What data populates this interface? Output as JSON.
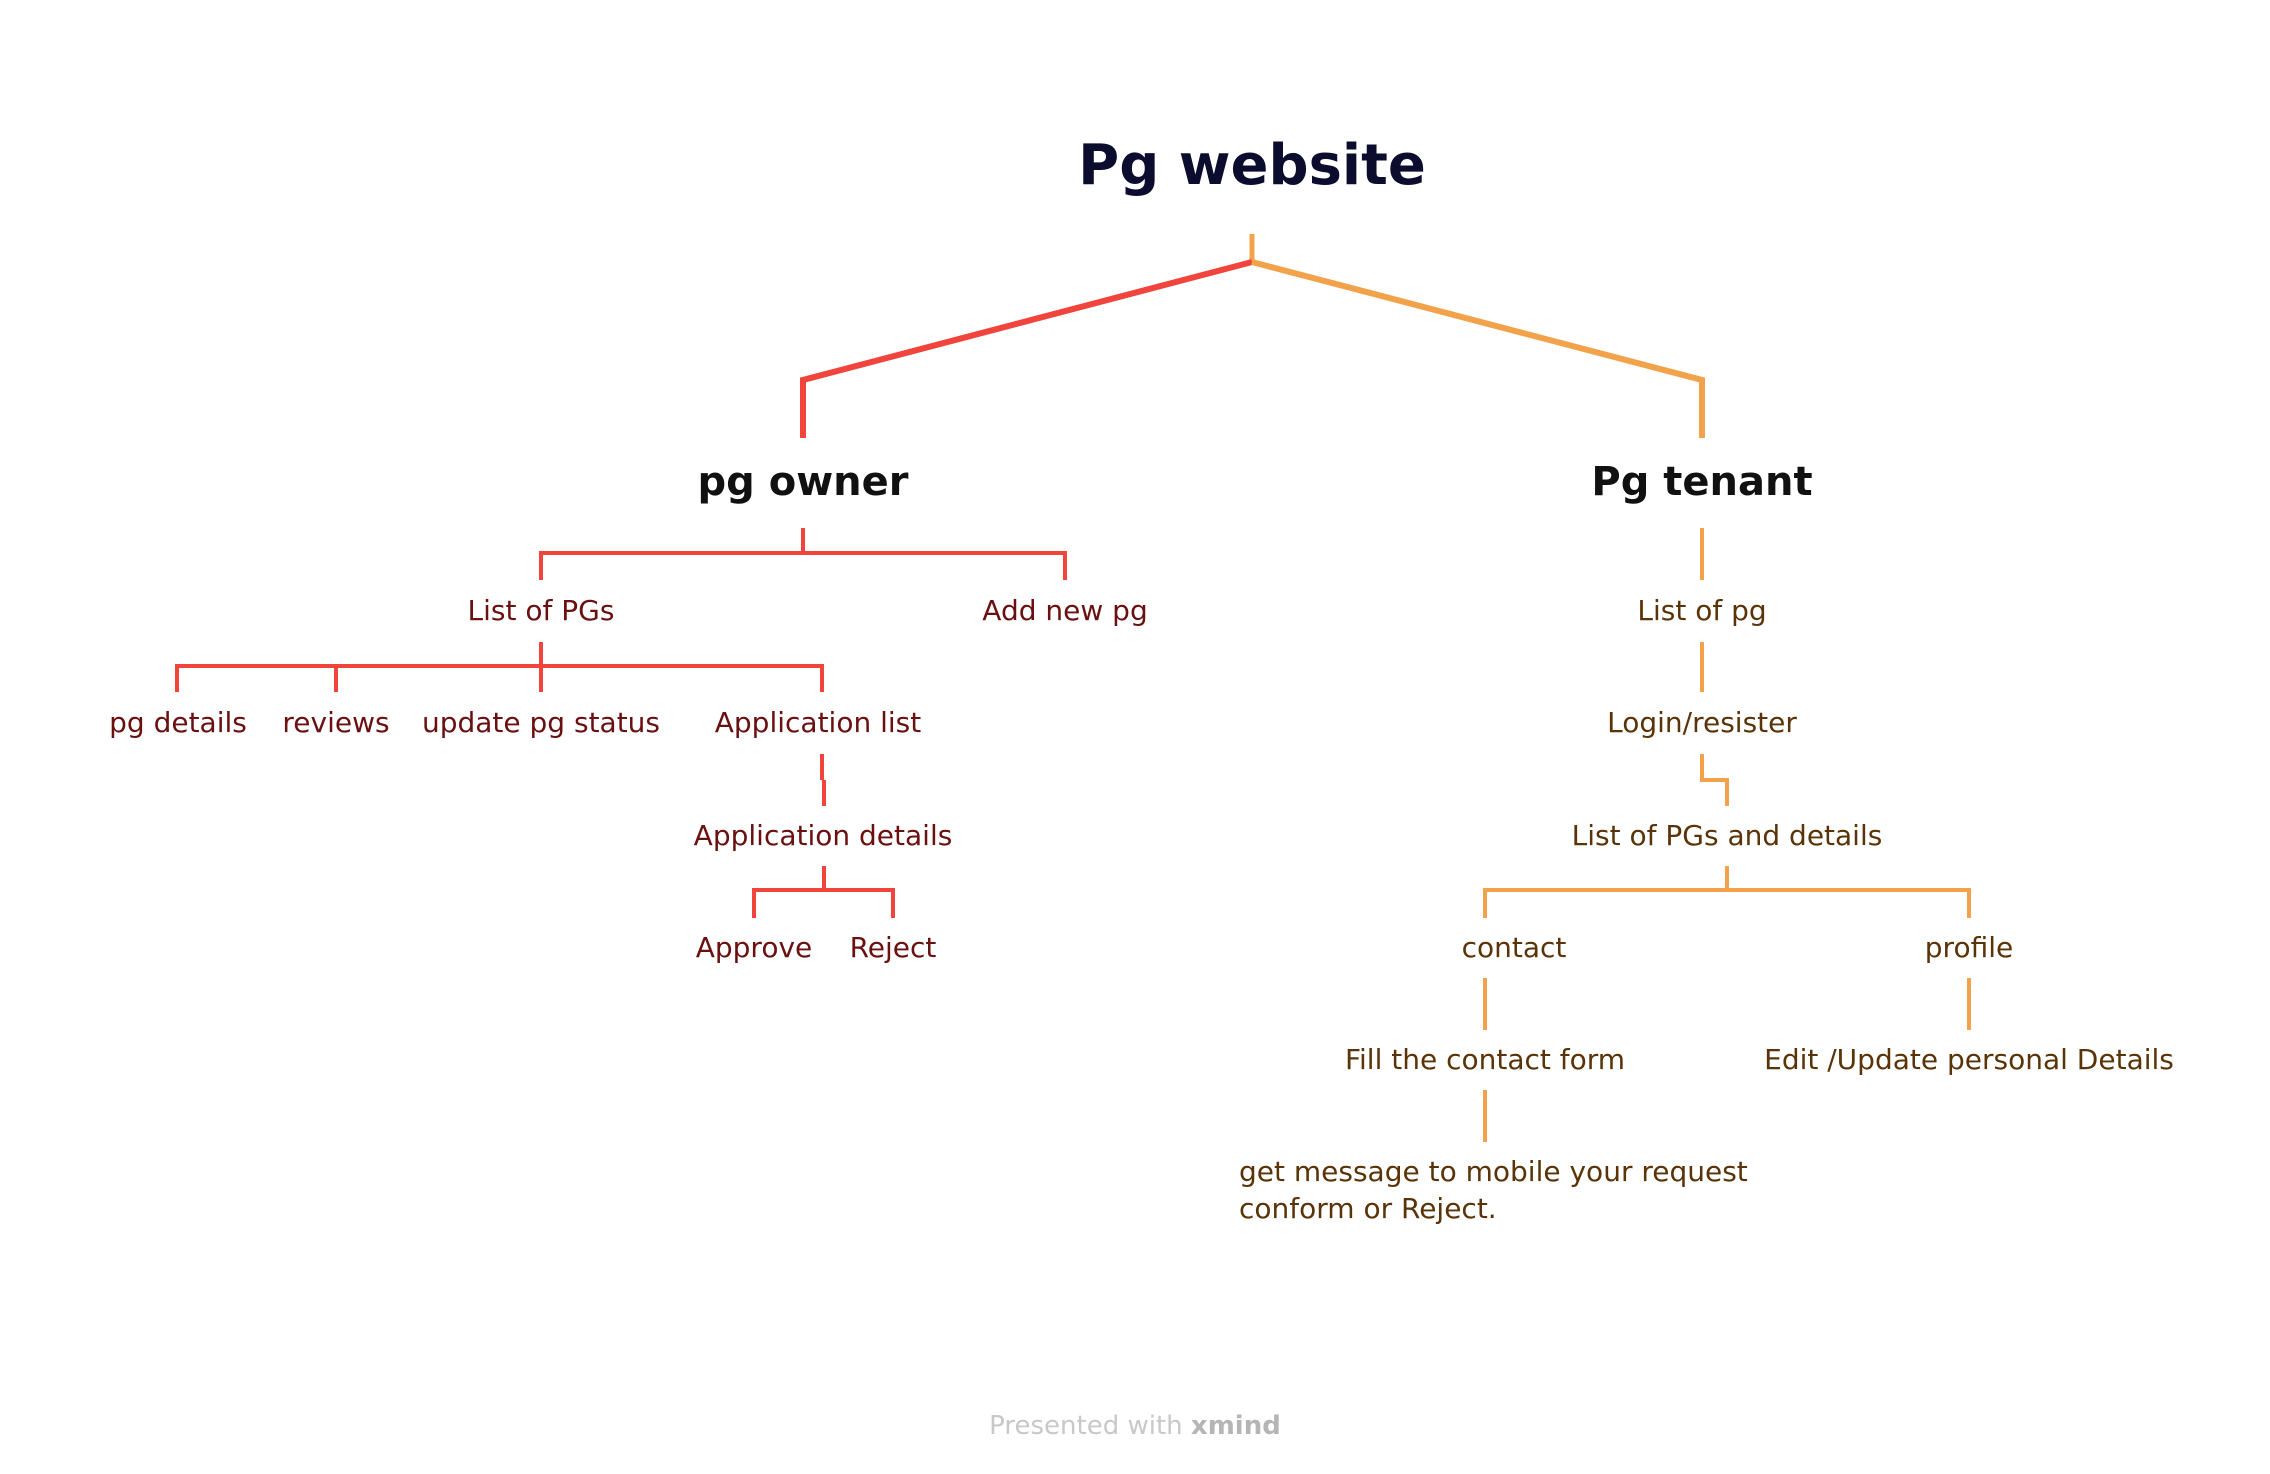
{
  "root": {
    "label": "Pg website"
  },
  "branches": {
    "owner": {
      "label": "pg owner",
      "list_of_pgs": "List of PGs",
      "add_new_pg": "Add new pg",
      "pg_details": "pg details",
      "reviews": "reviews",
      "update_pg_status": "update pg status",
      "application_list": "Application list",
      "application_details": "Application details",
      "approve": "Approve",
      "reject": "Reject"
    },
    "tenant": {
      "label": "Pg tenant",
      "list_of_pg": "List of pg",
      "login_register": "Login/resister",
      "list_pgs_details": "List of PGs and details",
      "contact": "contact",
      "profile": "profile",
      "fill_contact_form": "Fill the contact form",
      "edit_profile": "Edit /Update personal Details",
      "message_line1": "get message to mobile your request",
      "message_line2": "conform or Reject."
    }
  },
  "footer": {
    "prefix": "Presented with",
    "brand": "xmind"
  },
  "colors": {
    "owner_branch": "#f0443c",
    "tenant_branch": "#f2a24a",
    "root_text": "#0b0c2e"
  }
}
